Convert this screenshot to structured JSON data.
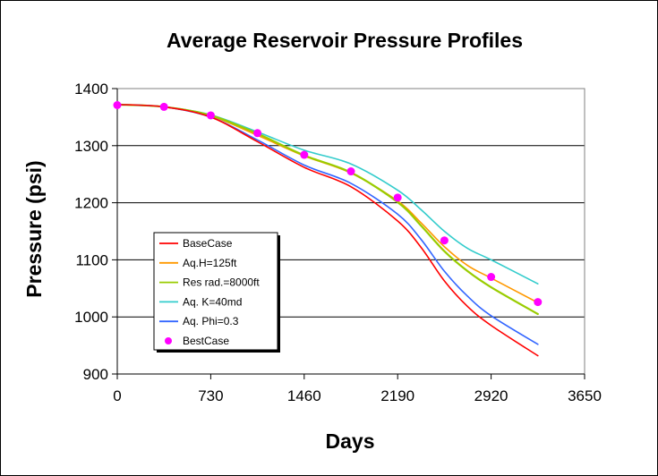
{
  "chart_data": {
    "type": "line",
    "title": "Average Reservoir Pressure Profiles",
    "xlabel": "Days",
    "ylabel": "Pressure (psi)",
    "xlim": [
      0,
      3650
    ],
    "ylim": [
      900,
      1400
    ],
    "xticks": [
      0,
      730,
      1460,
      2190,
      2920,
      3650
    ],
    "yticks": [
      900,
      1000,
      1100,
      1200,
      1300,
      1400
    ],
    "grid": "horizontal",
    "legend_position": "lower-left",
    "series": [
      {
        "name": "BaseCase",
        "color": "#ff0000",
        "style": "line",
        "x": [
          0,
          365,
          730,
          1095,
          1460,
          1825,
          2190,
          2372,
          2555,
          2737,
          2920,
          3285
        ],
        "y": [
          1372,
          1368,
          1350,
          1307,
          1262,
          1228,
          1168,
          1122,
          1063,
          1018,
          985,
          932
        ]
      },
      {
        "name": "Aq.H=125ft",
        "color": "#ff9900",
        "style": "line",
        "x": [
          0,
          365,
          730,
          1095,
          1460,
          1825,
          2190,
          2372,
          2555,
          2737,
          2920,
          3285
        ],
        "y": [
          1372,
          1368,
          1352,
          1318,
          1282,
          1252,
          1203,
          1165,
          1123,
          1090,
          1068,
          1025
        ]
      },
      {
        "name": "Res rad.=8000ft",
        "color": "#99cc00",
        "style": "line",
        "x": [
          0,
          365,
          730,
          1095,
          1460,
          1825,
          2190,
          2372,
          2555,
          2737,
          2920,
          3285
        ],
        "y": [
          1372,
          1368,
          1353,
          1321,
          1283,
          1253,
          1201,
          1160,
          1115,
          1080,
          1052,
          1005
        ]
      },
      {
        "name": "Aq. K=40md",
        "color": "#33cccc",
        "style": "line",
        "x": [
          0,
          365,
          730,
          1095,
          1460,
          1825,
          2190,
          2372,
          2555,
          2737,
          2920,
          3285
        ],
        "y": [
          1372,
          1368,
          1354,
          1324,
          1292,
          1268,
          1222,
          1188,
          1150,
          1120,
          1100,
          1058
        ]
      },
      {
        "name": "Aq. Phi=0.3",
        "color": "#3366ff",
        "style": "line",
        "x": [
          0,
          365,
          730,
          1095,
          1460,
          1825,
          2190,
          2372,
          2555,
          2737,
          2920,
          3285
        ],
        "y": [
          1372,
          1368,
          1350,
          1310,
          1266,
          1234,
          1180,
          1136,
          1080,
          1036,
          1002,
          952
        ]
      },
      {
        "name": "BestCase",
        "color": "#ff00ff",
        "style": "marker",
        "x": [
          0,
          365,
          730,
          1095,
          1460,
          1825,
          2190,
          2555,
          2920,
          3285
        ],
        "y": [
          1371,
          1368,
          1353,
          1322,
          1284,
          1255,
          1209,
          1134,
          1070,
          1026
        ]
      }
    ]
  }
}
